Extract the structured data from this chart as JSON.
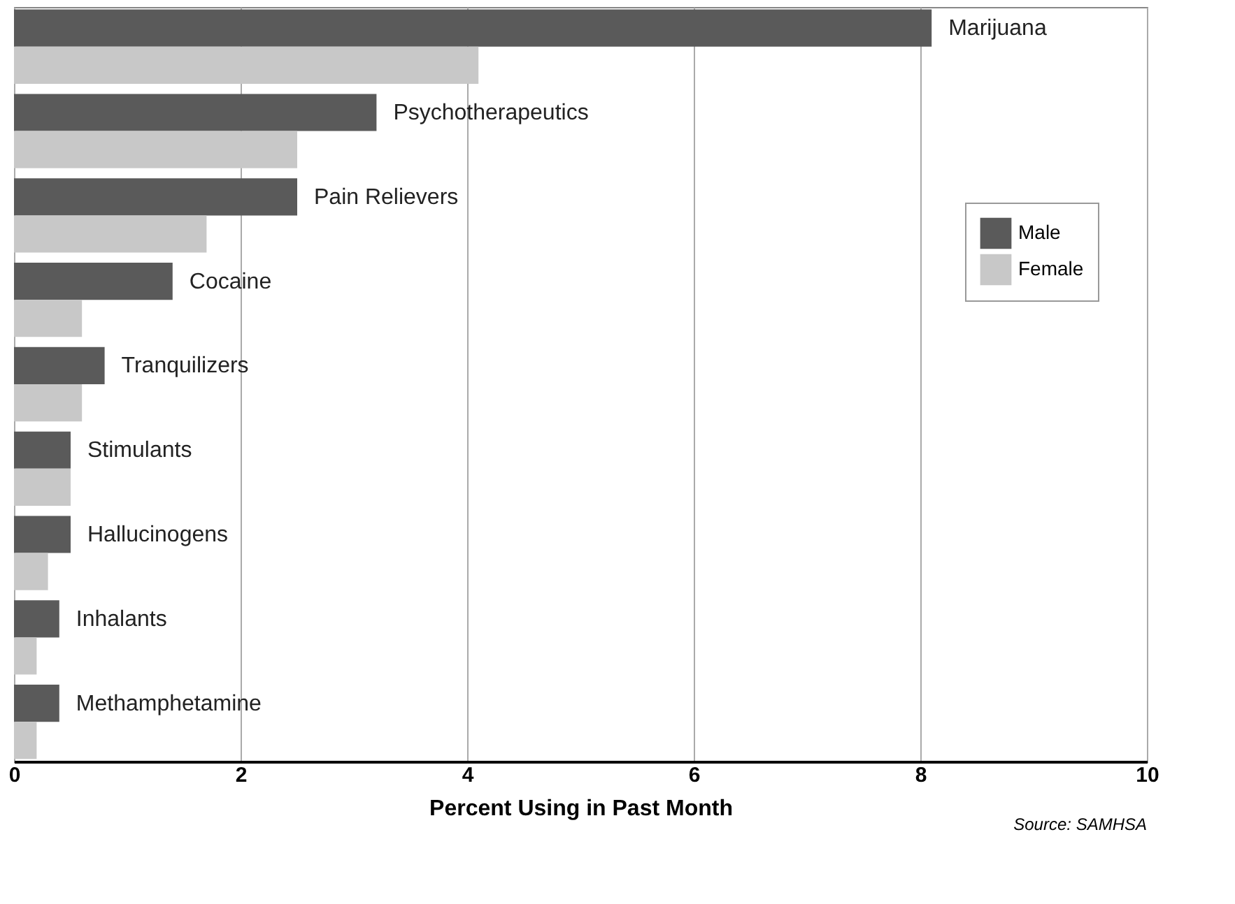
{
  "chart_data": {
    "type": "bar",
    "orientation": "horizontal",
    "xlabel": "Percent Using in Past Month",
    "categories": [
      "Marijuana",
      "Psychotherapeutics",
      "Pain Relievers",
      "Cocaine",
      "Tranquilizers",
      "Stimulants",
      "Hallucinogens",
      "Inhalants",
      "Methamphetamine"
    ],
    "series": [
      {
        "name": "Male",
        "color": "#5a5a5a",
        "values": [
          8.1,
          3.2,
          2.5,
          1.4,
          0.8,
          0.5,
          0.5,
          0.4,
          0.4
        ]
      },
      {
        "name": "Female",
        "color": "#c8c8c8",
        "values": [
          4.1,
          2.5,
          1.7,
          0.6,
          0.6,
          0.5,
          0.3,
          0.2,
          0.2
        ]
      }
    ],
    "xlim": [
      0,
      10
    ],
    "xticks": [
      0,
      2,
      4,
      6,
      8,
      10
    ],
    "grid": "x",
    "legend": "right",
    "annotations": [
      "Source: SAMHSA"
    ]
  }
}
